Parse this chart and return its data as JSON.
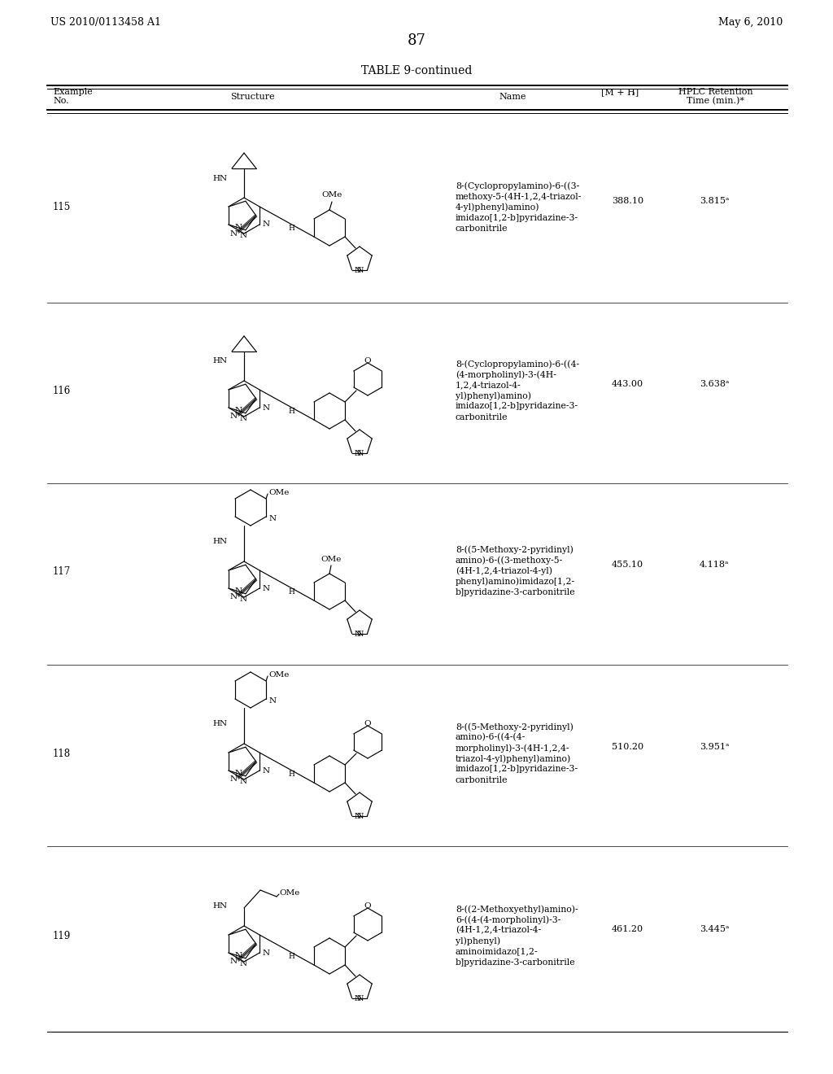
{
  "page_header_left": "US 2010/0113458 A1",
  "page_header_right": "May 6, 2010",
  "page_number": "87",
  "table_title": "TABLE 9-continued",
  "rows": [
    {
      "example": "115",
      "name": "8-(Cyclopropylamino)-6-((3-\nmethoxy-5-(4H-1,2,4-triazol-\n4-yl)phenyl)amino)\nimidazo[1,2-b]pyridazine-3-\ncarbonitrile",
      "mh": "388.10",
      "hplc": "3.815ᵃ"
    },
    {
      "example": "116",
      "name": "8-(Cyclopropylamino)-6-((4-\n(4-morpholinyl)-3-(4H-\n1,2,4-triazol-4-\nyl)phenyl)amino)\nimidazo[1,2-b]pyridazine-3-\ncarbonitrile",
      "mh": "443.00",
      "hplc": "3.638ᵃ"
    },
    {
      "example": "117",
      "name": "8-((5-Methoxy-2-pyridinyl)\namino)-6-((3-methoxy-5-\n(4H-1,2,4-triazol-4-yl)\nphenyl)amino)imidazo[1,2-\nb]pyridazine-3-carbonitrile",
      "mh": "455.10",
      "hplc": "4.118ᵃ"
    },
    {
      "example": "118",
      "name": "8-((5-Methoxy-2-pyridinyl)\namino)-6-((4-(4-\nmorpholinyl)-3-(4H-1,2,4-\ntriazol-4-yl)phenyl)amino)\nimidazo[1,2-b]pyridazine-3-\ncarbonitrile",
      "mh": "510.20",
      "hplc": "3.951ᵃ"
    },
    {
      "example": "119",
      "name": "8-((2-Methoxyethyl)amino)-\n6-((4-(4-morpholinyl)-3-\n(4H-1,2,4-triazol-4-\nyl)phenyl)\naminoimidazo[1,2-\nb]pyridazine-3-carbonitrile",
      "mh": "461.20",
      "hplc": "3.445ᵃ"
    }
  ]
}
